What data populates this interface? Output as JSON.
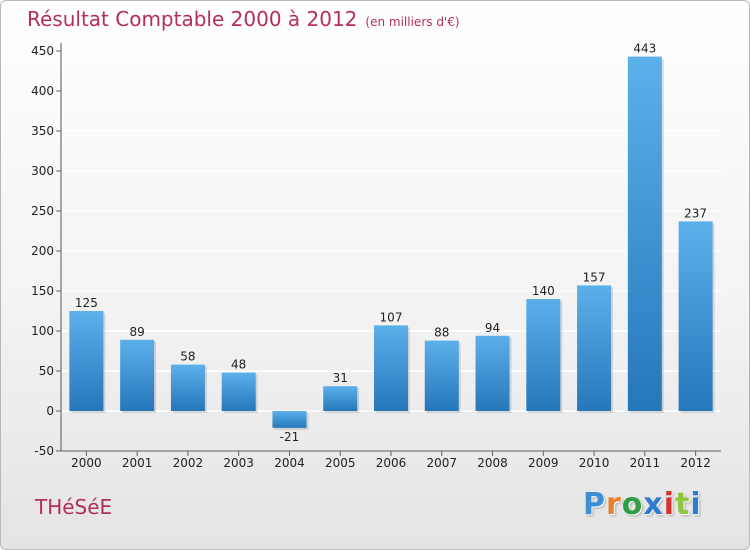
{
  "title": "Résultat Comptable 2000 à 2012",
  "subtitle": "(en milliers d'€)",
  "commune": "THéSéE",
  "logo": {
    "letters": [
      "P",
      "r",
      "o",
      "x",
      "i",
      "t",
      "i"
    ],
    "colors": [
      "#3a8fd6",
      "#e8812c",
      "#2f9e45",
      "#2f7bd0",
      "#d6322f",
      "#8cc63e",
      "#2f7bd0"
    ]
  },
  "colors": {
    "bar_top": "#5cb0ea",
    "bar_bottom": "#2577bb",
    "title": "#b32d5e",
    "grid": "#ffffff"
  },
  "chart_data": {
    "type": "bar",
    "title": "Résultat Comptable 2000 à 2012",
    "subtitle": "(en milliers d'€)",
    "categories": [
      "2000",
      "2001",
      "2002",
      "2003",
      "2004",
      "2005",
      "2006",
      "2007",
      "2008",
      "2009",
      "2010",
      "2011",
      "2012"
    ],
    "values": [
      125,
      89,
      58,
      48,
      -21,
      31,
      107,
      88,
      94,
      140,
      157,
      443,
      237
    ],
    "xlabel": "",
    "ylabel": "",
    "ylim": [
      -50,
      450
    ],
    "yticks": [
      -50,
      0,
      50,
      100,
      150,
      200,
      250,
      300,
      350,
      400,
      450
    ],
    "grid": true,
    "data_labels": true
  }
}
